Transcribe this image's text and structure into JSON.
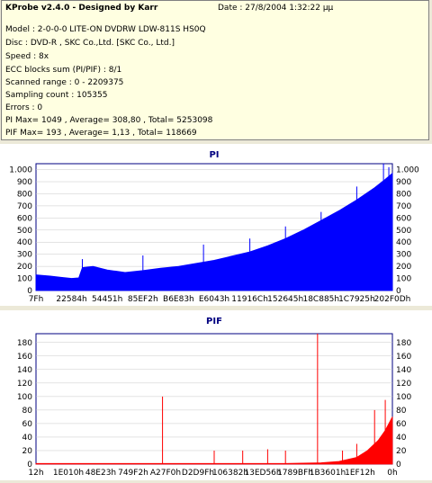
{
  "info": {
    "title": "KProbe v2.4.0 - Designed by Karr",
    "date": "Date : 27/8/2004 1:32:22 μμ",
    "lines": [
      "Model : 2-0-0-0 LITE-ON DVDRW LDW-811S   HS0Q",
      "Disc : DVD-R , SKC Co.,Ltd. [SKC Co., Ltd.]",
      "Speed : 8x",
      "ECC blocks sum (PI/PIF) : 8/1",
      "Scanned range : 0 - 2209375",
      "Sampling count : 105355",
      "Errors : 0",
      "PI Max= 1049 , Average= 308,80 , Total= 5253098",
      "PIF Max= 193 , Average= 1,13 , Total= 118669"
    ]
  },
  "chart_data": [
    {
      "type": "area",
      "title": "PI",
      "color": "#0000ff",
      "ylim": [
        0,
        1049
      ],
      "yticks": [
        0,
        100,
        200,
        300,
        400,
        500,
        600,
        700,
        800,
        900,
        1000
      ],
      "ytick_labels": [
        "0",
        "100",
        "200",
        "300",
        "400",
        "500",
        "600",
        "700",
        "800",
        "900",
        "1.000"
      ],
      "xtick_labels": [
        "7Fh",
        "22584h",
        "54451h",
        "85EF2h",
        "B6E83h",
        "E6043h",
        "11916Ch",
        "152645h",
        "18C885h",
        "1C7925h",
        "202F0Dh"
      ],
      "x": [
        0,
        0.04,
        0.07,
        0.1,
        0.12,
        0.13,
        0.16,
        0.2,
        0.25,
        0.3,
        0.35,
        0.4,
        0.45,
        0.5,
        0.55,
        0.6,
        0.65,
        0.7,
        0.75,
        0.8,
        0.85,
        0.9,
        0.95,
        0.98,
        1.0
      ],
      "values": [
        130,
        120,
        110,
        100,
        105,
        190,
        200,
        170,
        150,
        165,
        185,
        200,
        225,
        250,
        285,
        320,
        370,
        430,
        500,
        580,
        660,
        750,
        850,
        920,
        970
      ],
      "spikes": [
        {
          "x": 0.13,
          "value": 260
        },
        {
          "x": 0.3,
          "value": 290
        },
        {
          "x": 0.47,
          "value": 380
        },
        {
          "x": 0.6,
          "value": 430
        },
        {
          "x": 0.7,
          "value": 530
        },
        {
          "x": 0.8,
          "value": 650
        },
        {
          "x": 0.9,
          "value": 860
        },
        {
          "x": 0.975,
          "value": 1049
        },
        {
          "x": 0.99,
          "value": 1020
        }
      ]
    },
    {
      "type": "bar",
      "title": "PIF",
      "color": "#ff0000",
      "ylim": [
        0,
        193
      ],
      "yticks": [
        0,
        20,
        40,
        60,
        80,
        100,
        120,
        140,
        160,
        180
      ],
      "ytick_labels": [
        "0",
        "20",
        "40",
        "60",
        "80",
        "100",
        "120",
        "140",
        "160",
        "180"
      ],
      "xtick_labels": [
        "12h",
        "1E010h",
        "48E23h",
        "749F2h",
        "A27F0h",
        "D2D9Fh",
        "106382h",
        "13ED56h",
        "1789BFh",
        "1B3601h",
        "1EF12h",
        "0h"
      ],
      "x": [
        0,
        0.1,
        0.2,
        0.3,
        0.4,
        0.5,
        0.6,
        0.7,
        0.8,
        0.85,
        0.9,
        0.93,
        0.96,
        0.98,
        1.0
      ],
      "values": [
        1,
        1,
        1,
        1,
        1,
        1,
        1,
        1,
        2,
        4,
        10,
        20,
        35,
        50,
        70
      ],
      "spikes": [
        {
          "x": 0.355,
          "value": 100
        },
        {
          "x": 0.5,
          "value": 20
        },
        {
          "x": 0.58,
          "value": 20
        },
        {
          "x": 0.65,
          "value": 22
        },
        {
          "x": 0.7,
          "value": 20
        },
        {
          "x": 0.79,
          "value": 193
        },
        {
          "x": 0.86,
          "value": 20
        },
        {
          "x": 0.9,
          "value": 30
        },
        {
          "x": 0.95,
          "value": 80
        },
        {
          "x": 0.98,
          "value": 95
        }
      ]
    }
  ]
}
